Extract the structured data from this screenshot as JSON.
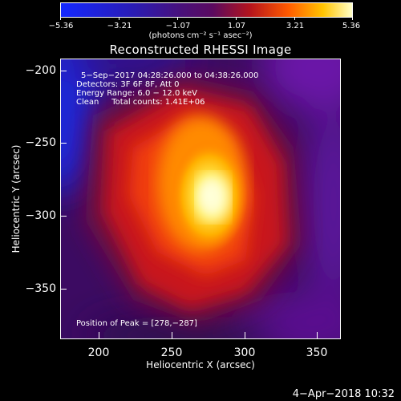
{
  "colorbar": {
    "ticks": [
      "−5.36",
      "−3.21",
      "−1.07",
      "1.07",
      "3.21",
      "5.36"
    ],
    "units": "(photons cm⁻² s⁻¹ asec⁻²)"
  },
  "image_title": "Reconstructed RHESSI Image",
  "info": {
    "line1": "5−Sep−2017 04:28:26.000 to 04:38:26.000",
    "line2": "Detectors: 3F 6F 8F, Att 0",
    "line3": "Energy Range: 6.0 − 12.0 keV",
    "line4": "Clean     Total counts: 1.41E+06",
    "peak": "Position of Peak = [278,−287]"
  },
  "axes": {
    "xlabel": "Heliocentric X (arcsec)",
    "ylabel": "Heliocentric Y (arcsec)",
    "xticks": [
      "200",
      "250",
      "300",
      "350"
    ],
    "yticks": [
      "−200",
      "−250",
      "−300",
      "−350"
    ]
  },
  "footer_date": "4−Apr−2018 10:32",
  "colors": {
    "map_low": "#1a2cff",
    "map_mid": "#4a0a8a",
    "map_red": "#d0141e",
    "map_high": "#ffff9a"
  }
}
